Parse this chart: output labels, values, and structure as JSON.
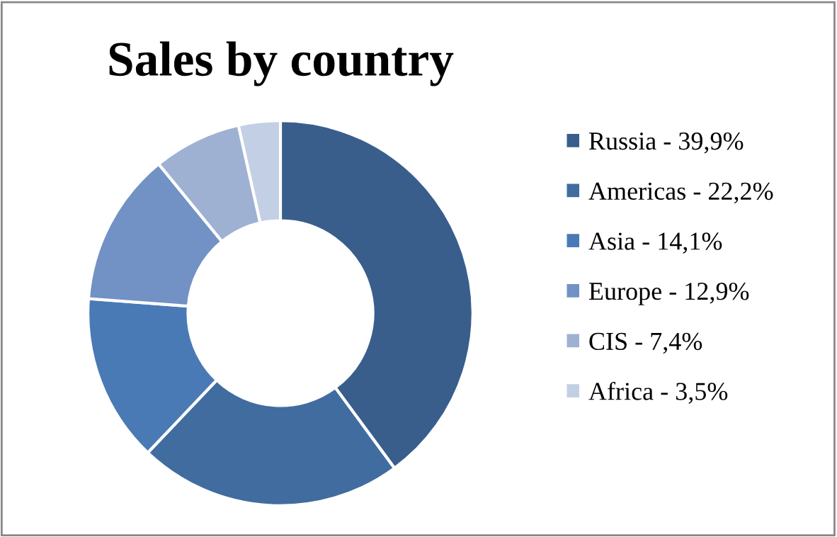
{
  "chart_data": {
    "type": "donut",
    "title": "Sales by country",
    "categories": [
      "Russia - 39,9%",
      "Americas - 22,2%",
      "Asia - 14,1%",
      "Europe - 12,9%",
      "CIS - 7,4%",
      "Africa - 3,5%"
    ],
    "values": [
      39.9,
      22.2,
      14.1,
      12.9,
      7.4,
      3.5
    ],
    "colors": [
      "#395e8c",
      "#416c9f",
      "#4a7ab5",
      "#7291c4",
      "#9fb1d3",
      "#c3cfe4"
    ],
    "legend": "right"
  }
}
